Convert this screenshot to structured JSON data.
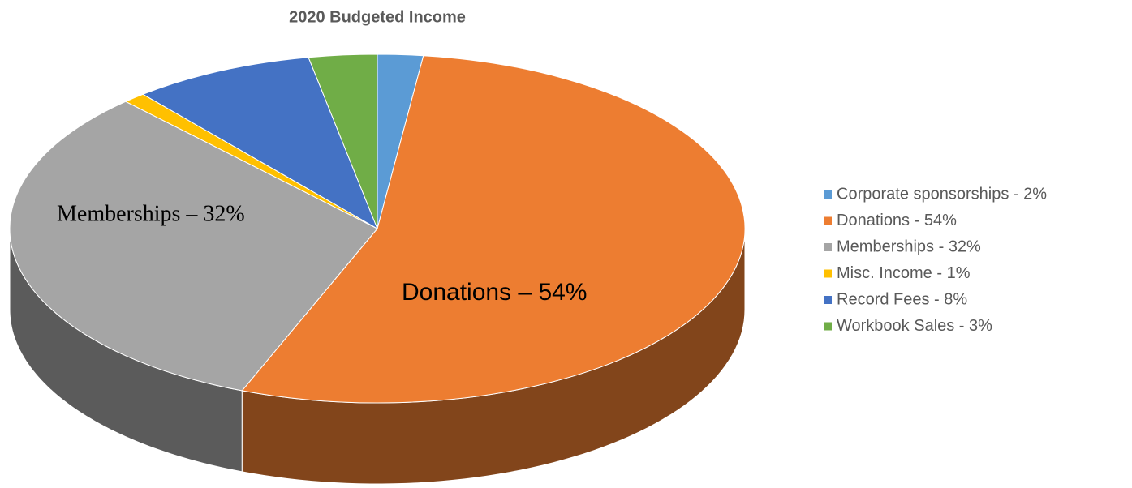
{
  "chart_data": {
    "type": "pie3d",
    "title": "2020 Budgeted Income",
    "categories": [
      "Corporate sponsorships - 2%",
      "Donations - 54%",
      "Memberships - 32%",
      "Misc. Income - 1%",
      "Record Fees - 8%",
      "Workbook Sales - 3%"
    ],
    "values": [
      2,
      54,
      32,
      1,
      8,
      3
    ],
    "value_labels": [
      null,
      "Donations – 54%",
      "Memberships – 32%",
      null,
      null,
      null
    ],
    "colors": [
      "#5b9bd5",
      "#ed7d31",
      "#a5a5a5",
      "#ffc000",
      "#4472c4",
      "#70ad47"
    ],
    "legend": "right"
  }
}
